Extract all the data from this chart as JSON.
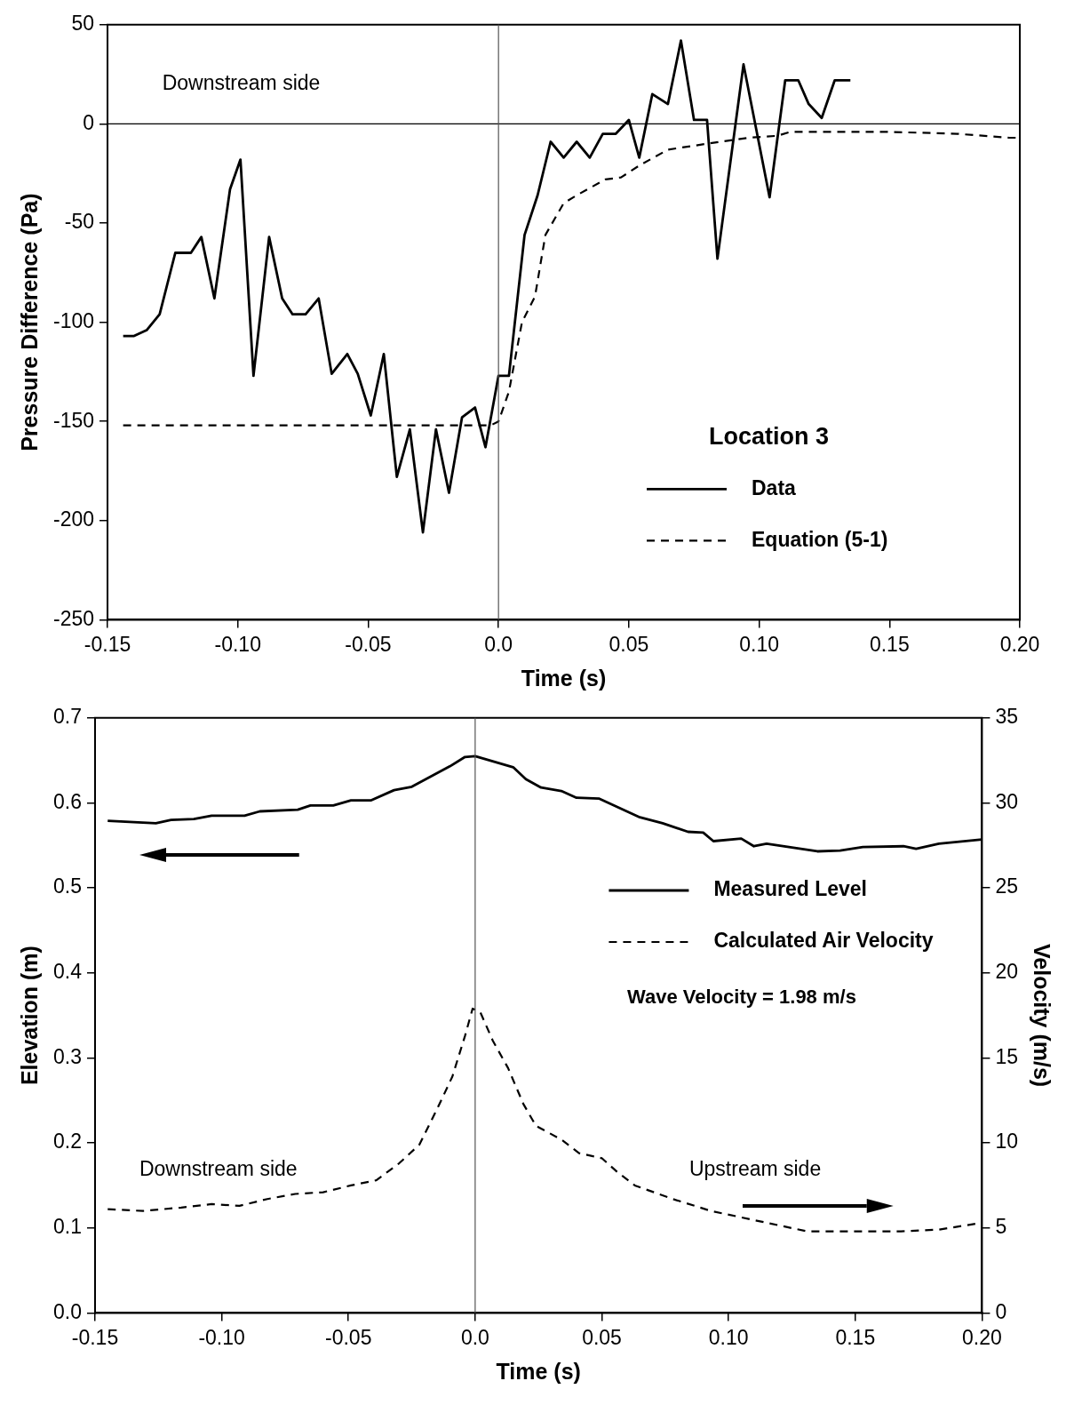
{
  "chart_data": [
    {
      "type": "line",
      "xlabel": "Time (s)",
      "ylabel": "Pressure Difference (Pa)",
      "legend_title": "Location 3",
      "legend": "bottom right",
      "grid": false,
      "marker": "none",
      "xlim": [
        -0.15,
        0.2
      ],
      "xticks": [
        {
          "value": -0.15,
          "label": "-0.15"
        },
        {
          "value": -0.1,
          "label": "-0.10"
        },
        {
          "value": -0.05,
          "label": "-0.05"
        },
        {
          "value": 0,
          "label": "0.0"
        },
        {
          "value": 0.05,
          "label": "0.05"
        },
        {
          "value": 0.1,
          "label": "0.10"
        },
        {
          "value": 0.15,
          "label": "0.15"
        },
        {
          "value": 0.2,
          "label": "0.20"
        }
      ],
      "ylim": [
        -250,
        50
      ],
      "yticks": [
        -250,
        -200,
        -150,
        -100,
        -50,
        0,
        50
      ],
      "ref_lines": [
        {
          "axis": "y",
          "value": 0,
          "color": "#000000"
        },
        {
          "axis": "x",
          "value": 0,
          "color": "#555555"
        }
      ],
      "annotations": [
        "Downstream side"
      ],
      "series": [
        {
          "name": "Data",
          "color": "#000000",
          "line_style": "solid",
          "x": [
            -0.144,
            -0.14,
            -0.135,
            -0.13,
            -0.124,
            -0.118,
            -0.114,
            -0.109,
            -0.103,
            -0.099,
            -0.094,
            -0.088,
            -0.083,
            -0.079,
            -0.074,
            -0.069,
            -0.064,
            -0.058,
            -0.054,
            -0.049,
            -0.044,
            -0.039,
            -0.034,
            -0.029,
            -0.024,
            -0.019,
            -0.014,
            -0.009,
            -0.005,
            0.0,
            0.004,
            0.01,
            0.015,
            0.02,
            0.025,
            0.03,
            0.035,
            0.04,
            0.045,
            0.05,
            0.054,
            0.059,
            0.065,
            0.07,
            0.075,
            0.08,
            0.084,
            0.094,
            0.104,
            0.11,
            0.115,
            0.119,
            0.124,
            0.129,
            0.135
          ],
          "values": [
            -107,
            -107,
            -104,
            -96,
            -65,
            -65,
            -57,
            -88,
            -33,
            -18,
            -127,
            -57,
            -88,
            -96,
            -96,
            -88,
            -126,
            -116,
            -126,
            -147,
            -116,
            -178,
            -154,
            -206,
            -154,
            -186,
            -148,
            -143,
            -163,
            -127,
            -127,
            -56,
            -36,
            -9,
            -17,
            -9,
            -17,
            -5,
            -5,
            2,
            -17,
            15,
            10,
            42,
            2,
            2,
            -68,
            30,
            -37,
            22,
            22,
            10,
            3,
            22,
            22
          ]
        },
        {
          "name": "Equation (5-1)",
          "color": "#000000",
          "line_style": "dashed",
          "x": [
            -0.144,
            -0.1,
            -0.05,
            -0.003,
            0.0,
            0.004,
            0.009,
            0.014,
            0.018,
            0.025,
            0.03,
            0.041,
            0.047,
            0.054,
            0.065,
            0.08,
            0.096,
            0.107,
            0.112,
            0.133,
            0.149,
            0.176,
            0.196,
            0.2
          ],
          "values": [
            -152,
            -152,
            -152,
            -152,
            -150,
            -135,
            -100,
            -87,
            -56,
            -40,
            -36,
            -28,
            -27,
            -21,
            -13,
            -10,
            -7,
            -6,
            -4,
            -4,
            -4,
            -5,
            -7,
            -7
          ]
        }
      ]
    },
    {
      "type": "line",
      "xlabel": "Time (s)",
      "ylabel": "Elevation (m)",
      "y2label": "Velocity (m/s)",
      "legend": "right",
      "grid": false,
      "marker": "none",
      "xlim": [
        -0.15,
        0.2
      ],
      "xticks": [
        {
          "value": -0.15,
          "label": "-0.15"
        },
        {
          "value": -0.1,
          "label": "-0.10"
        },
        {
          "value": -0.05,
          "label": "-0.05"
        },
        {
          "value": 0,
          "label": "0.0"
        },
        {
          "value": 0.05,
          "label": "0.05"
        },
        {
          "value": 0.1,
          "label": "0.10"
        },
        {
          "value": 0.15,
          "label": "0.15"
        },
        {
          "value": 0.2,
          "label": "0.20"
        }
      ],
      "ylim": [
        0,
        0.7
      ],
      "yticks": [
        {
          "value": 0,
          "label": "0.0"
        },
        0.1,
        0.2,
        0.3,
        0.4,
        0.5,
        0.6,
        0.7
      ],
      "y2lim": [
        0,
        35
      ],
      "y2ticks": [
        0,
        5,
        10,
        15,
        20,
        25,
        30,
        35
      ],
      "ref_lines": [
        {
          "axis": "x",
          "value": 0,
          "color": "#555555"
        }
      ],
      "annotations": [
        "Wave Velocity = 1.98 m/s",
        "Downstream side",
        "Upstream side"
      ],
      "series": [
        {
          "name": "Measured Level",
          "color": "#000000",
          "line_style": "solid",
          "x": [
            -0.145,
            -0.126,
            -0.12,
            -0.111,
            -0.104,
            -0.091,
            -0.085,
            -0.07,
            -0.065,
            -0.056,
            -0.049,
            -0.041,
            -0.032,
            -0.025,
            -0.01,
            -0.004,
            0.0,
            0.015,
            0.02,
            0.026,
            0.034,
            0.04,
            0.049,
            0.065,
            0.074,
            0.084,
            0.09,
            0.094,
            0.105,
            0.11,
            0.115,
            0.135,
            0.144,
            0.153,
            0.169,
            0.174,
            0.183,
            0.2
          ],
          "values": [
            0.579,
            0.576,
            0.58,
            0.581,
            0.585,
            0.585,
            0.59,
            0.592,
            0.597,
            0.597,
            0.603,
            0.603,
            0.615,
            0.619,
            0.643,
            0.654,
            0.655,
            0.642,
            0.628,
            0.618,
            0.614,
            0.606,
            0.605,
            0.583,
            0.576,
            0.566,
            0.565,
            0.555,
            0.558,
            0.549,
            0.552,
            0.543,
            0.544,
            0.548,
            0.549,
            0.546,
            0.552,
            0.557
          ]
        },
        {
          "name": "Calculated Air Velocity",
          "color": "#000000",
          "line_style": "dashed",
          "axis": "y2",
          "x": [
            -0.145,
            -0.131,
            -0.116,
            -0.104,
            -0.093,
            -0.082,
            -0.071,
            -0.06,
            -0.049,
            -0.039,
            -0.03,
            -0.022,
            -0.015,
            -0.009,
            -0.004,
            -0.001,
            0.002,
            0.007,
            0.013,
            0.019,
            0.024,
            0.034,
            0.041,
            0.05,
            0.056,
            0.063,
            0.078,
            0.093,
            0.112,
            0.131,
            0.149,
            0.168,
            0.183,
            0.2
          ],
          "values": [
            6.1,
            6.0,
            6.2,
            6.4,
            6.3,
            6.7,
            7.0,
            7.1,
            7.5,
            7.8,
            8.8,
            9.9,
            12.0,
            13.9,
            16.3,
            17.9,
            17.7,
            16.0,
            14.4,
            12.3,
            11.0,
            10.2,
            9.4,
            9.1,
            8.3,
            7.5,
            6.7,
            6.0,
            5.4,
            4.8,
            4.8,
            4.8,
            4.9,
            5.3
          ]
        }
      ]
    }
  ]
}
